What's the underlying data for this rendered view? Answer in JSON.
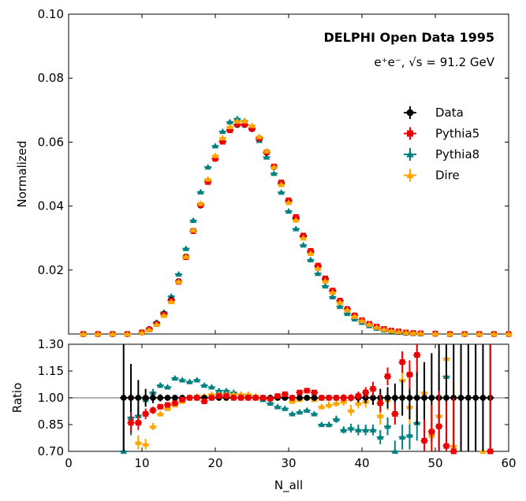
{
  "chart_data": {
    "type": "scatter",
    "main": {
      "ylabel": "Normalized",
      "ylim": [
        0,
        0.1
      ],
      "yticks": [
        "0.02",
        "0.04",
        "0.06",
        "0.08",
        "0.10"
      ],
      "title": "DELPHI Open Data 1995",
      "subtitle": "e⁺e⁻, √s = 91.2 GeV",
      "x": [
        2,
        4,
        6,
        8,
        10,
        11,
        12,
        13,
        14,
        15,
        16,
        17,
        18,
        19,
        20,
        21,
        22,
        23,
        24,
        25,
        26,
        27,
        28,
        29,
        30,
        31,
        32,
        33,
        34,
        35,
        36,
        37,
        38,
        39,
        40,
        41,
        42,
        43,
        44,
        45,
        46,
        47,
        48,
        50,
        52,
        54,
        56,
        58,
        60
      ],
      "series": [
        {
          "name": "Data",
          "color": "#000000",
          "marker": "circle",
          "values": [
            0,
            0,
            0,
            0,
            0.0005,
            0.0015,
            0.0033,
            0.0063,
            0.0107,
            0.0165,
            0.0242,
            0.0322,
            0.0402,
            0.0477,
            0.0548,
            0.0602,
            0.0638,
            0.0654,
            0.0654,
            0.0641,
            0.0612,
            0.0567,
            0.0522,
            0.0469,
            0.0413,
            0.0361,
            0.0305,
            0.0255,
            0.0212,
            0.0172,
            0.0135,
            0.0104,
            0.0078,
            0.0058,
            0.0043,
            0.0031,
            0.0022,
            0.0015,
            0.001,
            0.0007,
            0.0004,
            0.0003,
            0.0002,
            0.0001,
            0,
            0,
            0,
            0,
            0
          ]
        },
        {
          "name": "Pythia5",
          "color": "#ee0000",
          "marker": "square",
          "values": [
            0,
            0,
            0,
            0,
            0.0005,
            0.0014,
            0.0031,
            0.0061,
            0.0104,
            0.0163,
            0.024,
            0.0322,
            0.0403,
            0.0475,
            0.0548,
            0.0601,
            0.0637,
            0.0655,
            0.0655,
            0.0642,
            0.0611,
            0.0568,
            0.0524,
            0.0474,
            0.0418,
            0.0366,
            0.0308,
            0.026,
            0.0214,
            0.0174,
            0.0136,
            0.0104,
            0.0078,
            0.0058,
            0.0043,
            0.0032,
            0.0023,
            0.0016,
            0.0011,
            0.0008,
            0.0005,
            0.0003,
            0.0002,
            0.0001,
            0,
            0,
            0,
            0,
            0
          ]
        },
        {
          "name": "Pythia8",
          "color": "#008080",
          "marker": "triangle",
          "values": [
            0,
            0,
            0,
            0,
            0.0005,
            0.0016,
            0.0036,
            0.0068,
            0.0118,
            0.0187,
            0.0267,
            0.0355,
            0.0444,
            0.0522,
            0.0588,
            0.0633,
            0.0663,
            0.0673,
            0.0667,
            0.0644,
            0.0605,
            0.0553,
            0.0502,
            0.0443,
            0.0384,
            0.0329,
            0.0278,
            0.0232,
            0.0189,
            0.015,
            0.0116,
            0.0086,
            0.0064,
            0.0047,
            0.0036,
            0.0026,
            0.0018,
            0.0012,
            0.0008,
            0.0005,
            0.0003,
            0.0002,
            0.0001,
            0.0001,
            0,
            0,
            0,
            0,
            0
          ]
        },
        {
          "name": "Dire",
          "color": "#ffa500",
          "marker": "triangle",
          "values": [
            0,
            0,
            0,
            0,
            0.0004,
            0.0013,
            0.003,
            0.0058,
            0.0101,
            0.0164,
            0.0242,
            0.0325,
            0.0408,
            0.0484,
            0.0558,
            0.0613,
            0.0648,
            0.0665,
            0.0666,
            0.0652,
            0.0617,
            0.0572,
            0.0522,
            0.0467,
            0.0411,
            0.0356,
            0.03,
            0.0252,
            0.0205,
            0.0165,
            0.013,
            0.0099,
            0.0075,
            0.0055,
            0.0041,
            0.003,
            0.0021,
            0.0014,
            0.001,
            0.0007,
            0.0004,
            0.0003,
            0.0002,
            0.0001,
            0,
            0,
            0,
            0,
            0
          ]
        }
      ]
    },
    "ratio": {
      "ylabel": "Ratio",
      "ylim": [
        0.7,
        1.3
      ],
      "yticks": [
        "0.70",
        "0.85",
        "1.00",
        "1.15",
        "1.30"
      ],
      "xlabel": "N_all",
      "xlim": [
        0,
        60
      ],
      "xticks": [
        "0",
        "10",
        "20",
        "30",
        "40",
        "50",
        "60"
      ],
      "x": [
        7.5,
        8.5,
        9.5,
        10.5,
        11.5,
        12.5,
        13.5,
        14.5,
        15.5,
        16.5,
        17.5,
        18.5,
        19.5,
        20.5,
        21.5,
        22.5,
        23.5,
        24.5,
        25.5,
        26.5,
        27.5,
        28.5,
        29.5,
        30.5,
        31.5,
        32.5,
        33.5,
        34.5,
        35.5,
        36.5,
        37.5,
        38.5,
        39.5,
        40.5,
        41.5,
        42.5,
        43.5,
        44.5,
        45.5,
        46.5,
        47.5,
        48.5,
        49.5,
        50.5,
        51.5,
        52.5,
        53.5,
        54.5,
        55.5,
        56.5,
        57.5
      ],
      "series": [
        {
          "name": "Data",
          "color": "#000000",
          "marker": "circle",
          "values": [
            1,
            1,
            1,
            1,
            1,
            1,
            1,
            1,
            1,
            1,
            1,
            1,
            1,
            1,
            1,
            1,
            1,
            1,
            1,
            1,
            1,
            1,
            1,
            1,
            1,
            1,
            1,
            1,
            1,
            1,
            1,
            1,
            1,
            1,
            1,
            1,
            1,
            1,
            1,
            1,
            1,
            1,
            1,
            1,
            1,
            1,
            1,
            1,
            1,
            1,
            1
          ],
          "errors": [
            0.4,
            0.19,
            0.1,
            0.05,
            0.03,
            0.02,
            0.015,
            0.012,
            0.01,
            0.01,
            0.01,
            0.01,
            0.01,
            0.01,
            0.01,
            0.01,
            0.01,
            0.01,
            0.01,
            0.01,
            0.01,
            0.01,
            0.01,
            0.01,
            0.01,
            0.01,
            0.01,
            0.01,
            0.01,
            0.012,
            0.015,
            0.02,
            0.025,
            0.03,
            0.04,
            0.05,
            0.06,
            0.08,
            0.1,
            0.12,
            0.15,
            0.2,
            0.25,
            0.3,
            0.35,
            0.4,
            0.5,
            0.6,
            0.7,
            0.8,
            0.9
          ]
        },
        {
          "name": "Pythia5",
          "color": "#ee0000",
          "marker": "square",
          "x": [
            8.5,
            9.5,
            10.5,
            11.5,
            12.5,
            13.5,
            14.5,
            15.5,
            16.5,
            17.5,
            18.5,
            19.5,
            20.5,
            21.5,
            22.5,
            23.5,
            24.5,
            25.5,
            26.5,
            27.5,
            28.5,
            29.5,
            30.5,
            31.5,
            32.5,
            33.5,
            34.5,
            35.5,
            36.5,
            37.5,
            38.5,
            39.5,
            40.5,
            41.5,
            42.5,
            43.5,
            44.5,
            45.5,
            46.5,
            47.5,
            48.5,
            49.5,
            50.5,
            51.5,
            52.5,
            57.5
          ],
          "values": [
            0.86,
            0.86,
            0.91,
            0.93,
            0.95,
            0.96,
            0.97,
            0.99,
            1,
            1,
            0.98,
            1,
            1.01,
            1.01,
            1,
            1,
            1,
            1,
            1,
            0.995,
            1.01,
            1.02,
            1,
            1.03,
            1.04,
            1.03,
            1,
            1,
            1,
            1,
            1,
            1.01,
            1.03,
            1.05,
            0.97,
            1.12,
            0.91,
            1.2,
            1.13,
            1.24,
            0.76,
            0.81,
            0.84,
            0.73,
            0.7,
            0.7
          ],
          "errors": [
            0.06,
            0.04,
            0.03,
            0.02,
            0.015,
            0.01,
            0.01,
            0.01,
            0.01,
            0.01,
            0.01,
            0.01,
            0.01,
            0.01,
            0.01,
            0.01,
            0.01,
            0.01,
            0.01,
            0.01,
            0.01,
            0.01,
            0.01,
            0.01,
            0.01,
            0.01,
            0.01,
            0.01,
            0.015,
            0.02,
            0.02,
            0.025,
            0.03,
            0.04,
            0.05,
            0.05,
            0.06,
            0.06,
            0.08,
            0.1,
            0.12,
            0.15,
            0.2,
            0.25,
            0.3,
            0.6
          ]
        },
        {
          "name": "Pythia8",
          "color": "#008080",
          "marker": "triangle",
          "x": [
            7.5,
            8.5,
            9.5,
            10.5,
            11.5,
            12.5,
            13.5,
            14.5,
            15.5,
            16.5,
            17.5,
            18.5,
            19.5,
            20.5,
            21.5,
            22.5,
            23.5,
            24.5,
            25.5,
            26.5,
            27.5,
            28.5,
            29.5,
            30.5,
            31.5,
            32.5,
            33.5,
            34.5,
            35.5,
            36.5,
            37.5,
            38.5,
            39.5,
            40.5,
            41.5,
            42.5,
            43.5,
            44.5,
            45.5,
            46.5,
            47.5,
            51.5
          ],
          "values": [
            0.7,
            0.89,
            0.9,
            0.99,
            1.03,
            1.07,
            1.06,
            1.11,
            1.1,
            1.09,
            1.1,
            1.07,
            1.06,
            1.04,
            1.04,
            1.03,
            1.02,
            1.01,
            1,
            0.99,
            0.97,
            0.95,
            0.94,
            0.91,
            0.92,
            0.93,
            0.91,
            0.85,
            0.85,
            0.88,
            0.82,
            0.83,
            0.82,
            0.82,
            0.82,
            0.78,
            0.84,
            0.7,
            0.78,
            0.79,
            0.86,
            1.12
          ],
          "errors": [
            0.3,
            0.1,
            0.05,
            0.03,
            0.02,
            0.015,
            0.012,
            0.01,
            0.01,
            0.01,
            0.01,
            0.01,
            0.01,
            0.01,
            0.01,
            0.01,
            0.01,
            0.01,
            0.01,
            0.01,
            0.01,
            0.01,
            0.01,
            0.01,
            0.01,
            0.01,
            0.01,
            0.01,
            0.015,
            0.02,
            0.02,
            0.025,
            0.03,
            0.03,
            0.03,
            0.04,
            0.05,
            0.06,
            0.07,
            0.08,
            0.1,
            0.2
          ]
        },
        {
          "name": "Dire",
          "color": "#ffa500",
          "marker": "triangle",
          "x": [
            9.5,
            10.5,
            11.5,
            12.5,
            13.5,
            14.5,
            15.5,
            16.5,
            17.5,
            18.5,
            19.5,
            20.5,
            21.5,
            22.5,
            23.5,
            24.5,
            25.5,
            26.5,
            27.5,
            28.5,
            29.5,
            30.5,
            31.5,
            32.5,
            33.5,
            34.5,
            35.5,
            36.5,
            37.5,
            38.5,
            39.5,
            40.5,
            41.5,
            42.5,
            43.5,
            44.5,
            45.5,
            46.5,
            47.5,
            48.5,
            49.5,
            50.5,
            51.5,
            52.5,
            56.5
          ],
          "values": [
            0.75,
            0.74,
            0.84,
            0.91,
            0.94,
            0.96,
            0.98,
            1,
            1.01,
            1.01,
            1.02,
            1.02,
            1.02,
            1.02,
            1.02,
            1.02,
            1.01,
            1,
            1,
            1,
            1.005,
            0.98,
            0.99,
            1,
            0.99,
            0.95,
            0.96,
            0.97,
            0.98,
            0.93,
            0.97,
            0.98,
            1,
            0.9,
            0.99,
            0.91,
            1.1,
            0.95,
            1.24,
            1.03,
            0.79,
            0.9,
            1.22,
            0.73,
            0.7
          ],
          "errors": [
            0.04,
            0.03,
            0.02,
            0.015,
            0.012,
            0.01,
            0.01,
            0.01,
            0.01,
            0.01,
            0.01,
            0.01,
            0.01,
            0.01,
            0.01,
            0.01,
            0.01,
            0.01,
            0.01,
            0.01,
            0.01,
            0.01,
            0.01,
            0.01,
            0.01,
            0.015,
            0.02,
            0.02,
            0.025,
            0.03,
            0.03,
            0.035,
            0.04,
            0.05,
            0.06,
            0.06,
            0.08,
            0.1,
            0.12,
            0.15,
            0.2,
            0.25,
            0.3,
            0.35,
            0.7
          ]
        }
      ]
    }
  }
}
